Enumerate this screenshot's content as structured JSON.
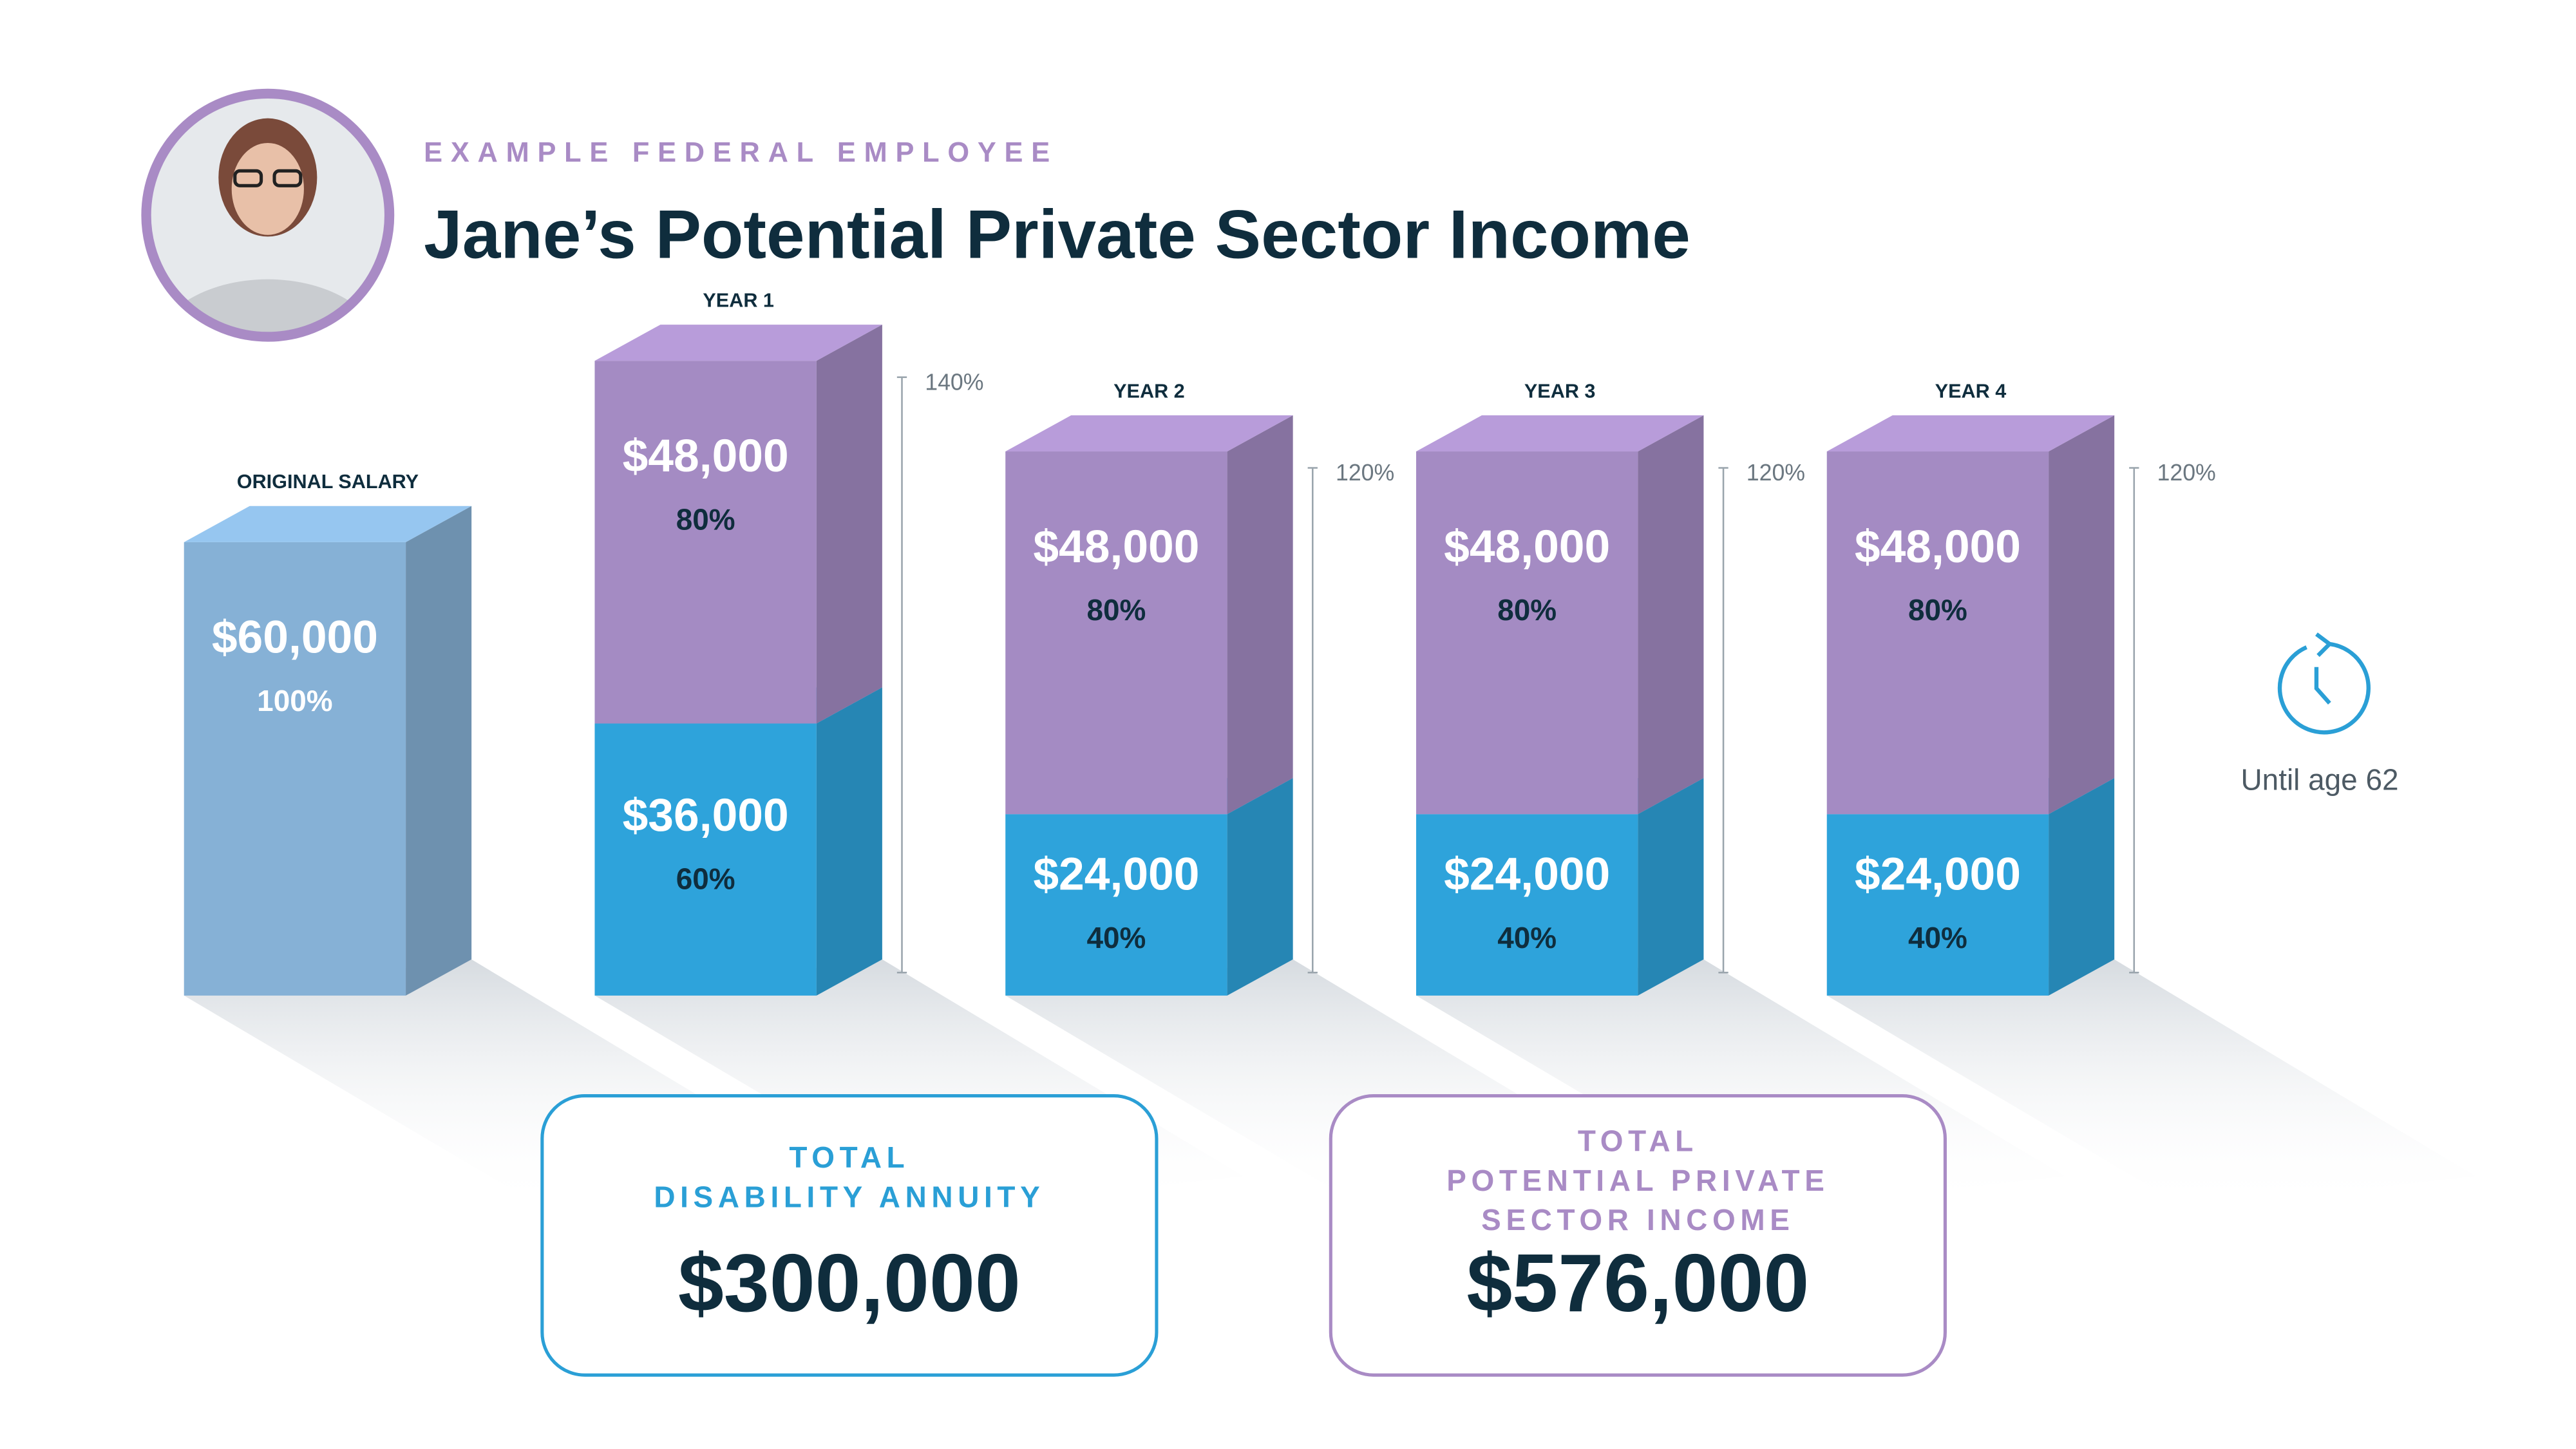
{
  "header": {
    "eyebrow": "EXAMPLE FEDERAL EMPLOYEE",
    "title": "Jane’s Potential Private Sector Income"
  },
  "chart_data": {
    "type": "bar",
    "categories": [
      "ORIGINAL SALARY",
      "YEAR 1",
      "YEAR 2",
      "YEAR 3",
      "YEAR 4"
    ],
    "series": [
      {
        "colors": [
          "#86b1d6",
          "#2ea3db",
          "#2ea3db",
          "#2ea3db",
          "#2ea3db"
        ],
        "values": [
          60000,
          36000,
          24000,
          24000,
          24000
        ],
        "value_labels": [
          "$60,000",
          "$36,000",
          "$24,000",
          "$24,000",
          "$24,000"
        ],
        "percent_labels": [
          "100%",
          "60%",
          "40%",
          "40%",
          "40%"
        ]
      },
      {
        "colors": [
          null,
          "#a48bc3",
          "#a48bc3",
          "#a48bc3",
          "#a48bc3"
        ],
        "values": [
          null,
          48000,
          48000,
          48000,
          48000
        ],
        "value_labels": [
          null,
          "$48,000",
          "$48,000",
          "$48,000",
          "$48,000"
        ],
        "percent_labels": [
          null,
          "80%",
          "80%",
          "80%",
          "80%"
        ]
      }
    ],
    "total_labels": [
      null,
      "140%",
      "120%",
      "120%",
      "120%"
    ],
    "annotation": "Until age 62"
  },
  "totals": [
    {
      "label_lines": [
        "TOTAL",
        "DISABILITY ANNUITY"
      ],
      "value": "$300,000",
      "color": "#2a9fd6"
    },
    {
      "label_lines": [
        "TOTAL",
        "POTENTIAL PRIVATE",
        "SECTOR INCOME"
      ],
      "value": "$576,000",
      "color": "#a98bc5"
    }
  ]
}
